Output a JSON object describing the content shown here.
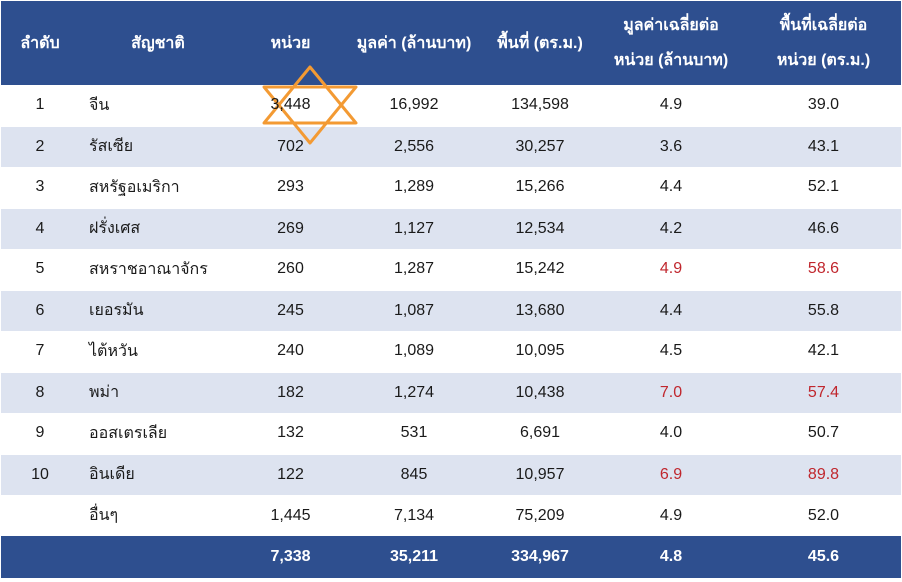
{
  "headers": {
    "rank": "ลำดับ",
    "nationality": "สัญชาติ",
    "units": "หน่วย",
    "value": "มูลค่า (ล้านบาท)",
    "area": "พื้นที่ (ตร.ม.)",
    "avg_value": [
      "มูลค่าเฉลี่ยต่อ",
      "หน่วย (ล้านบาท)"
    ],
    "avg_area": [
      "พื้นที่เฉลี่ยต่อ",
      "หน่วย (ตร.ม.)"
    ]
  },
  "rows": [
    {
      "rank": "1",
      "nationality": "จีน",
      "units": "3,448",
      "value": "16,992",
      "area": "134,598",
      "avg_value": "4.9",
      "avg_area": "39.0"
    },
    {
      "rank": "2",
      "nationality": "รัสเซีย",
      "units": "702",
      "value": "2,556",
      "area": "30,257",
      "avg_value": "3.6",
      "avg_area": "43.1"
    },
    {
      "rank": "3",
      "nationality": "สหรัฐอเมริกา",
      "units": "293",
      "value": "1,289",
      "area": "15,266",
      "avg_value": "4.4",
      "avg_area": "52.1"
    },
    {
      "rank": "4",
      "nationality": "ฝรั่งเศส",
      "units": "269",
      "value": "1,127",
      "area": "12,534",
      "avg_value": "4.2",
      "avg_area": "46.6"
    },
    {
      "rank": "5",
      "nationality": "สหราชอาณาจักร",
      "units": "260",
      "value": "1,287",
      "area": "15,242",
      "avg_value": "4.9",
      "avg_area": "58.6"
    },
    {
      "rank": "6",
      "nationality": "เยอรมัน",
      "units": "245",
      "value": "1,087",
      "area": "13,680",
      "avg_value": "4.4",
      "avg_area": "55.8"
    },
    {
      "rank": "7",
      "nationality": "ไต้หวัน",
      "units": "240",
      "value": "1,089",
      "area": "10,095",
      "avg_value": "4.5",
      "avg_area": "42.1"
    },
    {
      "rank": "8",
      "nationality": "พม่า",
      "units": "182",
      "value": "1,274",
      "area": "10,438",
      "avg_value": "7.0",
      "avg_area": "57.4"
    },
    {
      "rank": "9",
      "nationality": "ออสเตรเลีย",
      "units": "132",
      "value": "531",
      "area": "6,691",
      "avg_value": "4.0",
      "avg_area": "50.7"
    },
    {
      "rank": "10",
      "nationality": "อินเดีย",
      "units": "122",
      "value": "845",
      "area": "10,957",
      "avg_value": "6.9",
      "avg_area": "89.8"
    },
    {
      "rank": "",
      "nationality": "อื่นๆ",
      "units": "1,445",
      "value": "7,134",
      "area": "75,209",
      "avg_value": "4.9",
      "avg_area": "52.0"
    }
  ],
  "totals": {
    "units": "7,338",
    "value": "35,211",
    "area": "334,967",
    "avg_value": "4.8",
    "avg_area": "45.6"
  },
  "colors": {
    "header_bg": "#2e4f8f",
    "band_bg": "#dde3f0",
    "highlight_text": "#c0262d",
    "star_outline": "#f39a33"
  }
}
